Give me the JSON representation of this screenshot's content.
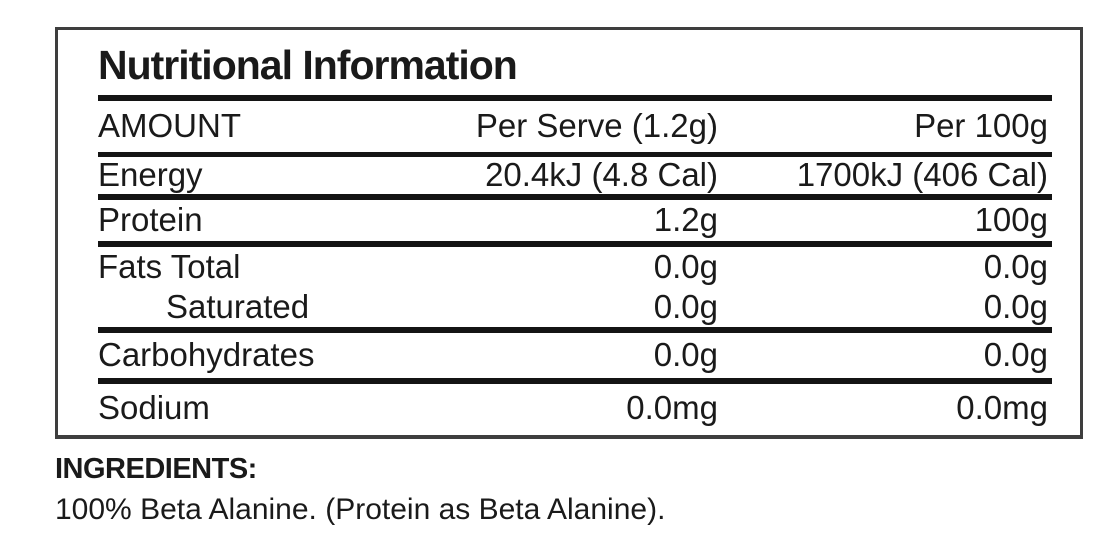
{
  "panel": {
    "title": "Nutritional Information",
    "header": {
      "amount": "AMOUNT",
      "per_serve": "Per Serve (1.2g)",
      "per_100g": "Per 100g"
    },
    "sections": [
      {
        "rows": [
          {
            "label": "Energy",
            "per_serve": "20.4kJ (4.8 Cal)",
            "per_100g": "1700kJ (406 Cal)"
          }
        ]
      },
      {
        "rows": [
          {
            "label": "Protein",
            "per_serve": "1.2g",
            "per_100g": "100g"
          }
        ]
      },
      {
        "rows": [
          {
            "label": "Fats Total",
            "per_serve": "0.0g",
            "per_100g": "0.0g"
          },
          {
            "label": "Saturated",
            "per_serve": "0.0g",
            "per_100g": "0.0g",
            "indent": true
          }
        ]
      },
      {
        "rows": [
          {
            "label": "Carbohydrates",
            "per_serve": "0.0g",
            "per_100g": "0.0g"
          }
        ]
      },
      {
        "rows": [
          {
            "label": "Sodium",
            "per_serve": "0.0mg",
            "per_100g": "0.0mg"
          }
        ]
      }
    ]
  },
  "ingredients": {
    "heading": "INGREDIENTS:",
    "text": "100% Beta Alanine. (Protein as Beta Alanine)."
  },
  "colors": {
    "text": "#1a1a1a",
    "rule": "#141414",
    "border": "#3e3e3e",
    "background": "#ffffff"
  }
}
